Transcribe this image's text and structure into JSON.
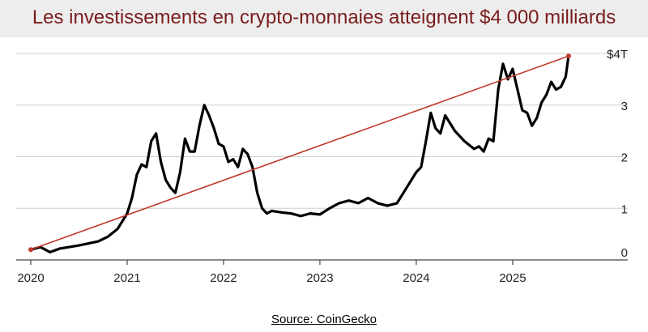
{
  "title": "Les investissements en crypto-monnaies atteignent $4 000 milliards",
  "source": "Source: CoinGecko",
  "chart_data": {
    "type": "line",
    "title": "Les investissements en crypto-monnaies atteignent $4 000 milliards",
    "xlabel": "",
    "ylabel": "",
    "x_ticks": [
      "2020",
      "2021",
      "2022",
      "2023",
      "2024",
      "2025"
    ],
    "y_ticks": [
      "0",
      "1",
      "2",
      "3",
      "$4T"
    ],
    "xlim": [
      2020.0,
      2025.9
    ],
    "ylim": [
      0,
      4
    ],
    "grid": true,
    "series": [
      {
        "color": "#000000",
        "x": [
          2020.0,
          2020.1,
          2020.2,
          2020.3,
          2020.4,
          2020.5,
          2020.6,
          2020.7,
          2020.8,
          2020.9,
          2021.0,
          2021.05,
          2021.1,
          2021.15,
          2021.2,
          2021.25,
          2021.3,
          2021.35,
          2021.4,
          2021.45,
          2021.5,
          2021.55,
          2021.6,
          2021.65,
          2021.7,
          2021.75,
          2021.8,
          2021.85,
          2021.9,
          2021.95,
          2022.0,
          2022.05,
          2022.1,
          2022.15,
          2022.2,
          2022.25,
          2022.3,
          2022.35,
          2022.4,
          2022.45,
          2022.5,
          2022.6,
          2022.7,
          2022.8,
          2022.9,
          2023.0,
          2023.1,
          2023.2,
          2023.3,
          2023.4,
          2023.5,
          2023.6,
          2023.7,
          2023.8,
          2023.85,
          2023.9,
          2024.0,
          2024.05,
          2024.1,
          2024.15,
          2024.2,
          2024.25,
          2024.3,
          2024.4,
          2024.5,
          2024.6,
          2024.65,
          2024.7,
          2024.75,
          2024.8,
          2024.85,
          2024.9,
          2024.95,
          2025.0,
          2025.05,
          2025.1,
          2025.15,
          2025.2,
          2025.25,
          2025.3,
          2025.35,
          2025.4,
          2025.45,
          2025.5,
          2025.55,
          2025.58
        ],
        "values": [
          0.2,
          0.25,
          0.15,
          0.22,
          0.25,
          0.28,
          0.32,
          0.36,
          0.45,
          0.6,
          0.9,
          1.2,
          1.65,
          1.85,
          1.8,
          2.3,
          2.45,
          1.9,
          1.55,
          1.4,
          1.3,
          1.7,
          2.35,
          2.1,
          2.1,
          2.6,
          3.0,
          2.8,
          2.55,
          2.25,
          2.2,
          1.9,
          1.95,
          1.8,
          2.15,
          2.05,
          1.8,
          1.3,
          1.0,
          0.9,
          0.95,
          0.92,
          0.9,
          0.85,
          0.9,
          0.88,
          1.0,
          1.1,
          1.15,
          1.1,
          1.2,
          1.1,
          1.05,
          1.1,
          1.25,
          1.4,
          1.7,
          1.8,
          2.3,
          2.85,
          2.55,
          2.45,
          2.8,
          2.5,
          2.3,
          2.15,
          2.2,
          2.1,
          2.35,
          2.3,
          3.3,
          3.8,
          3.5,
          3.7,
          3.3,
          2.9,
          2.85,
          2.6,
          2.75,
          3.05,
          3.2,
          3.45,
          3.3,
          3.35,
          3.55,
          3.95
        ]
      },
      {
        "color": "#c0392b",
        "x": [
          2020.0,
          2025.58
        ],
        "values": [
          0.2,
          3.95
        ]
      }
    ]
  }
}
